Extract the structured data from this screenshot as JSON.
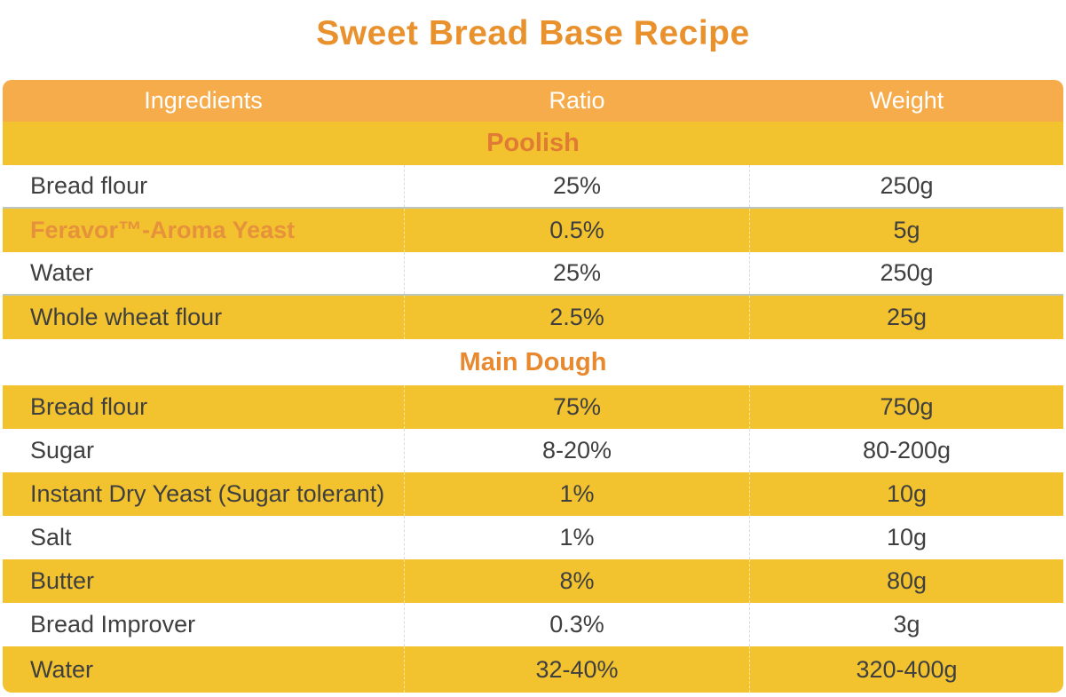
{
  "title": "Sweet Bread Base Recipe",
  "colors": {
    "title_orange": "#E8912D",
    "header_bg": "#F7AC4B",
    "gold": "#F2C32F",
    "section_orange": "#E07B35",
    "main_section_orange": "#E88930",
    "highlight_orange": "#E6913B",
    "text_dark": "#3F3F3F"
  },
  "table": {
    "columns": [
      "Ingredients",
      "Ratio",
      "Weight"
    ],
    "sections": [
      {
        "name": "Poolish",
        "rows": [
          {
            "ingredient": "Bread flour",
            "ratio": "25%",
            "weight": "250g"
          },
          {
            "ingredient": "Feravor™-Aroma Yeast",
            "ratio": "0.5%",
            "weight": "5g"
          },
          {
            "ingredient": "Water",
            "ratio": "25%",
            "weight": "250g"
          },
          {
            "ingredient": "Whole wheat flour",
            "ratio": "2.5%",
            "weight": "25g"
          }
        ]
      },
      {
        "name": "Main Dough",
        "rows": [
          {
            "ingredient": "Bread flour",
            "ratio": "75%",
            "weight": "750g"
          },
          {
            "ingredient": "Sugar",
            "ratio": "8-20%",
            "weight": "80-200g"
          },
          {
            "ingredient": "Instant Dry Yeast (Sugar tolerant)",
            "ratio": "1%",
            "weight": "10g"
          },
          {
            "ingredient": "Salt",
            "ratio": "1%",
            "weight": "10g"
          },
          {
            "ingredient": "Butter",
            "ratio": "8%",
            "weight": "80g"
          },
          {
            "ingredient": "Bread Improver",
            "ratio": "0.3%",
            "weight": "3g"
          },
          {
            "ingredient": "Water",
            "ratio": "32-40%",
            "weight": "320-400g"
          }
        ]
      }
    ]
  }
}
